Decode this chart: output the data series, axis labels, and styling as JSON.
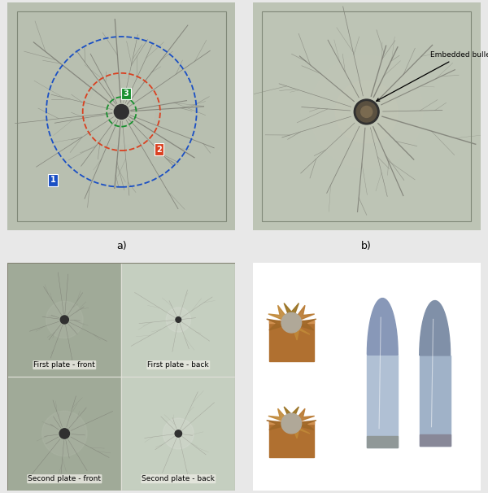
{
  "figure_width": 6.0,
  "figure_height": 6.06,
  "dpi": 100,
  "bg_color": "#e8e8e8",
  "panel_label_fontsize": 9,
  "zone_colors_blue": "#1a4fc4",
  "zone_colors_red": "#d94020",
  "zone_colors_green": "#1a9030",
  "embedded_bullet_text": "Embedded bullet",
  "subpanel_labels": [
    "First plate - front",
    "First plate - back",
    "Second plate - front",
    "Second plate - back"
  ],
  "glass_color_a": "#b8bfb0",
  "glass_color_b": "#bdc4b5",
  "glass_color_c_dark": "#a0aa98",
  "glass_color_c_light": "#c5cfc0",
  "crack_color_dark": "#787870",
  "crack_color_light": "#999990",
  "hole_dark": "#303030",
  "sublabel_fontsize": 6.5
}
